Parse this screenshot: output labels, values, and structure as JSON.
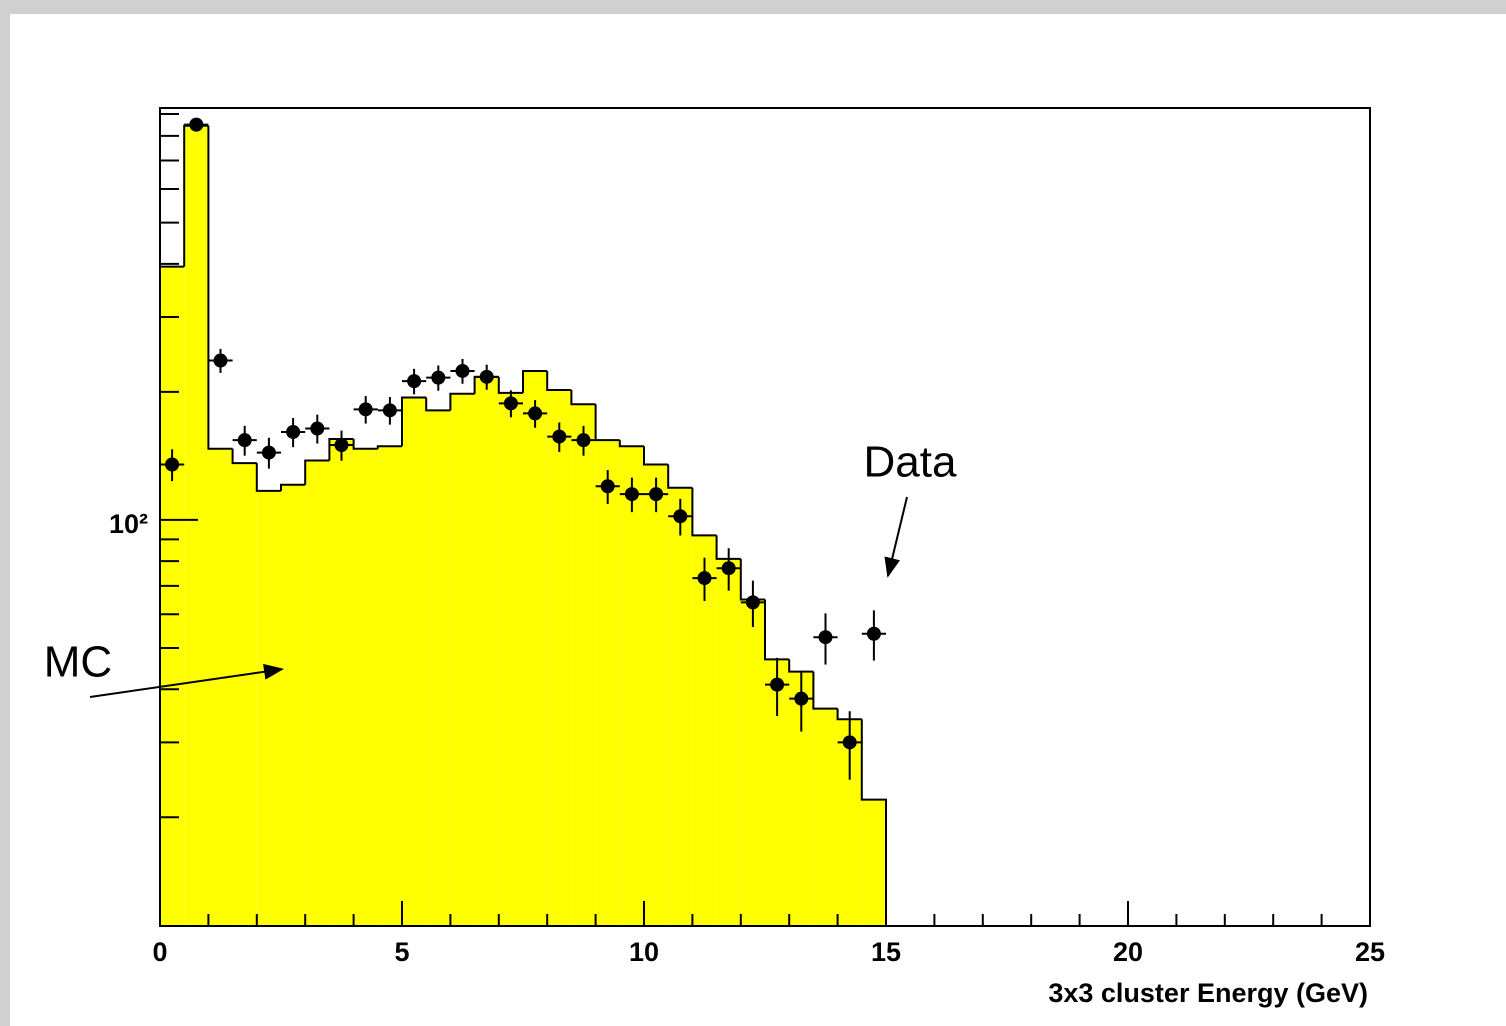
{
  "chart_data": {
    "type": "histogram",
    "x_label": "3x3 cluster Energy (GeV)",
    "bins": [
      0,
      0.5,
      1,
      1.5,
      2,
      2.5,
      3,
      3.5,
      4,
      4.5,
      5,
      5.5,
      6,
      6.5,
      7,
      7.5,
      8,
      8.5,
      9,
      9.5,
      10,
      10.5,
      11,
      11.5,
      12,
      12.5,
      13,
      13.5,
      14,
      14.5,
      15
    ],
    "series": [
      {
        "color": "#ffff00",
        "values": [
          394,
          845,
          147,
          136,
          117,
          121,
          138,
          155,
          147,
          149,
          194,
          181,
          198,
          217,
          199,
          224,
          202,
          187,
          154,
          149,
          135,
          119,
          92,
          81,
          65,
          47,
          44,
          36,
          34,
          22
        ]
      },
      {
        "color": "#000000",
        "x": [
          0.25,
          0.75,
          1.25,
          1.75,
          2.25,
          2.75,
          3.25,
          3.75,
          4.25,
          4.75,
          5.25,
          5.75,
          6.25,
          6.75,
          7.25,
          7.75,
          8.25,
          8.75,
          9.25,
          9.75,
          10.25,
          10.75,
          11.25,
          11.75,
          12.25,
          12.75,
          13.25,
          13.75,
          14.25,
          14.75
        ],
        "values": [
          135,
          850,
          237,
          154,
          144,
          161,
          164,
          150,
          182,
          181,
          212,
          216,
          224,
          217,
          188,
          178,
          157,
          154,
          120,
          115,
          115,
          102,
          73,
          77,
          64,
          41,
          38,
          53,
          30,
          54
        ],
        "errors": [
          11.6,
          29.2,
          15.4,
          12.4,
          12,
          12.7,
          12.8,
          12.2,
          13.5,
          13.5,
          14.6,
          14.7,
          15,
          14.7,
          13.7,
          13.3,
          12.5,
          12.4,
          11,
          10.7,
          10.7,
          10.1,
          8.5,
          8.8,
          8,
          6.4,
          6.2,
          7.3,
          5.5,
          7.3
        ]
      }
    ],
    "xlim": [
      0,
      25
    ],
    "xticks": [
      0,
      5,
      10,
      15,
      20,
      25
    ],
    "xminor_ticks": [
      1,
      2,
      3,
      4,
      6,
      7,
      8,
      9,
      11,
      12,
      13,
      14,
      16,
      17,
      18,
      19,
      21,
      22,
      23,
      24
    ],
    "ylim": [
      11.1,
      930
    ],
    "log_y": true,
    "yticks": [
      {
        "value": 100,
        "label": "10²"
      }
    ],
    "yminor_ticks": [
      20,
      30,
      40,
      50,
      60,
      70,
      80,
      90,
      200,
      300,
      400,
      500,
      600,
      700,
      800,
      900
    ],
    "annotations": [
      {
        "text": "Data",
        "x": 15,
        "y": 70
      },
      {
        "text": "MC",
        "x": 5,
        "y": 40
      }
    ]
  }
}
